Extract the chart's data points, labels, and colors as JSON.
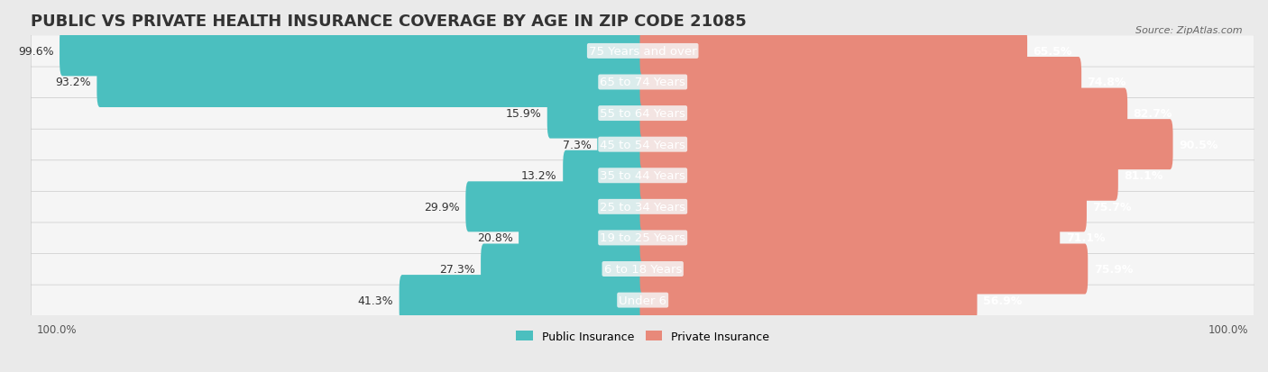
{
  "title": "PUBLIC VS PRIVATE HEALTH INSURANCE COVERAGE BY AGE IN ZIP CODE 21085",
  "source": "Source: ZipAtlas.com",
  "categories": [
    "Under 6",
    "6 to 18 Years",
    "19 to 25 Years",
    "25 to 34 Years",
    "35 to 44 Years",
    "45 to 54 Years",
    "55 to 64 Years",
    "65 to 74 Years",
    "75 Years and over"
  ],
  "public_values": [
    41.3,
    27.3,
    20.8,
    29.9,
    13.2,
    7.3,
    15.9,
    93.2,
    99.6
  ],
  "private_values": [
    56.9,
    75.9,
    71.1,
    75.7,
    81.1,
    90.5,
    82.7,
    74.8,
    65.5
  ],
  "public_color": "#4BBFBF",
  "private_color": "#E8897A",
  "background_color": "#EAEAEA",
  "bar_bg_color": "#F5F5F5",
  "bar_height": 0.62,
  "title_fontsize": 13,
  "label_fontsize": 9.5,
  "value_fontsize": 9,
  "legend_fontsize": 9,
  "axis_label_fontsize": 8.5
}
